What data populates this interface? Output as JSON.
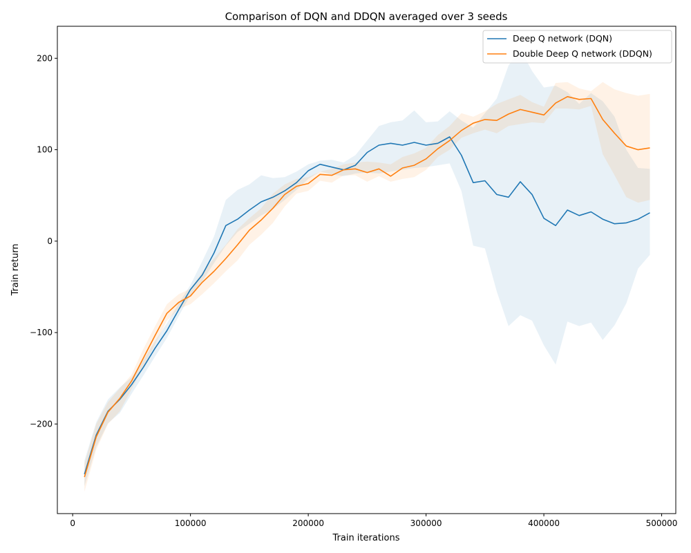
{
  "chart_data": {
    "type": "line",
    "title": "Comparison of DQN and DDQN averaged over 3 seeds",
    "xlabel": "Train iterations",
    "ylabel": "Train return",
    "xlim": [
      -13000,
      512000
    ],
    "ylim": [
      -298,
      235
    ],
    "x_ticks": [
      0,
      100000,
      200000,
      300000,
      400000,
      500000
    ],
    "y_ticks": [
      -200,
      -100,
      0,
      100,
      200
    ],
    "grid": false,
    "legend_position": "top-right",
    "x": [
      10000,
      20000,
      30000,
      40000,
      50000,
      60000,
      70000,
      80000,
      90000,
      100000,
      110000,
      120000,
      130000,
      140000,
      150000,
      160000,
      170000,
      180000,
      190000,
      200000,
      210000,
      220000,
      230000,
      240000,
      250000,
      260000,
      270000,
      280000,
      290000,
      300000,
      310000,
      320000,
      330000,
      340000,
      350000,
      360000,
      370000,
      380000,
      390000,
      400000,
      410000,
      420000,
      430000,
      440000,
      450000,
      460000,
      470000,
      480000,
      490000
    ],
    "series": [
      {
        "name": "Deep Q network (DQN)",
        "color": "#1f77b4",
        "values": [
          -255,
          -212,
          -186,
          -173,
          -157,
          -138,
          -117,
          -98,
          -75,
          -53,
          -37,
          -13,
          17,
          24,
          34,
          43,
          48,
          55,
          64,
          77,
          84,
          81,
          78,
          83,
          97,
          105,
          107,
          105,
          108,
          105,
          107,
          114,
          94,
          64,
          66,
          51,
          48,
          65,
          51,
          25,
          17,
          34,
          28,
          32,
          24,
          19,
          20,
          24,
          31
        ],
        "lower": [
          -268,
          -225,
          -199,
          -188,
          -167,
          -147,
          -126,
          -106,
          -82,
          -59,
          -44,
          -24,
          -5,
          10,
          19,
          28,
          35,
          45,
          56,
          68,
          76,
          73,
          71,
          74,
          75,
          74,
          76,
          78,
          80,
          81,
          83,
          85,
          55,
          -5,
          -8,
          -55,
          -93,
          -81,
          -87,
          -114,
          -135,
          -88,
          -93,
          -89,
          -108,
          -92,
          -68,
          -30,
          -15
        ],
        "upper": [
          -240,
          -198,
          -173,
          -160,
          -149,
          -130,
          -109,
          -90,
          -68,
          -48,
          -22,
          5,
          45,
          56,
          62,
          72,
          69,
          70,
          76,
          84,
          88,
          89,
          86,
          94,
          110,
          126,
          130,
          132,
          143,
          130,
          131,
          142,
          132,
          124,
          140,
          156,
          192,
          210,
          186,
          168,
          170,
          163,
          150,
          162,
          153,
          136,
          100,
          80,
          79
        ]
      },
      {
        "name": "Double Deep Q network (DDQN)",
        "color": "#ff7f0e",
        "values": [
          -258,
          -214,
          -187,
          -172,
          -153,
          -128,
          -103,
          -79,
          -67,
          -60,
          -45,
          -33,
          -19,
          -4,
          12,
          23,
          36,
          51,
          60,
          63,
          73,
          72,
          78,
          79,
          75,
          79,
          71,
          80,
          83,
          90,
          101,
          110,
          121,
          129,
          133,
          132,
          139,
          144,
          141,
          138,
          151,
          158,
          155,
          156,
          133,
          118,
          104,
          100,
          102
        ],
        "lower": [
          -274,
          -228,
          -200,
          -186,
          -162,
          -138,
          -113,
          -87,
          -74,
          -69,
          -58,
          -46,
          -33,
          -21,
          -4,
          7,
          20,
          38,
          52,
          55,
          66,
          64,
          72,
          72,
          65,
          71,
          65,
          68,
          70,
          78,
          92,
          100,
          113,
          118,
          122,
          118,
          126,
          128,
          130,
          129,
          145,
          145,
          144,
          148,
          95,
          72,
          48,
          42,
          45
        ],
        "upper": [
          -243,
          -200,
          -176,
          -161,
          -146,
          -118,
          -93,
          -69,
          -58,
          -52,
          -34,
          -19,
          -4,
          13,
          25,
          36,
          52,
          62,
          68,
          70,
          76,
          79,
          84,
          86,
          87,
          86,
          84,
          92,
          96,
          102,
          116,
          126,
          140,
          136,
          142,
          150,
          155,
          160,
          152,
          147,
          173,
          174,
          167,
          164,
          174,
          166,
          162,
          159,
          161
        ]
      }
    ]
  }
}
